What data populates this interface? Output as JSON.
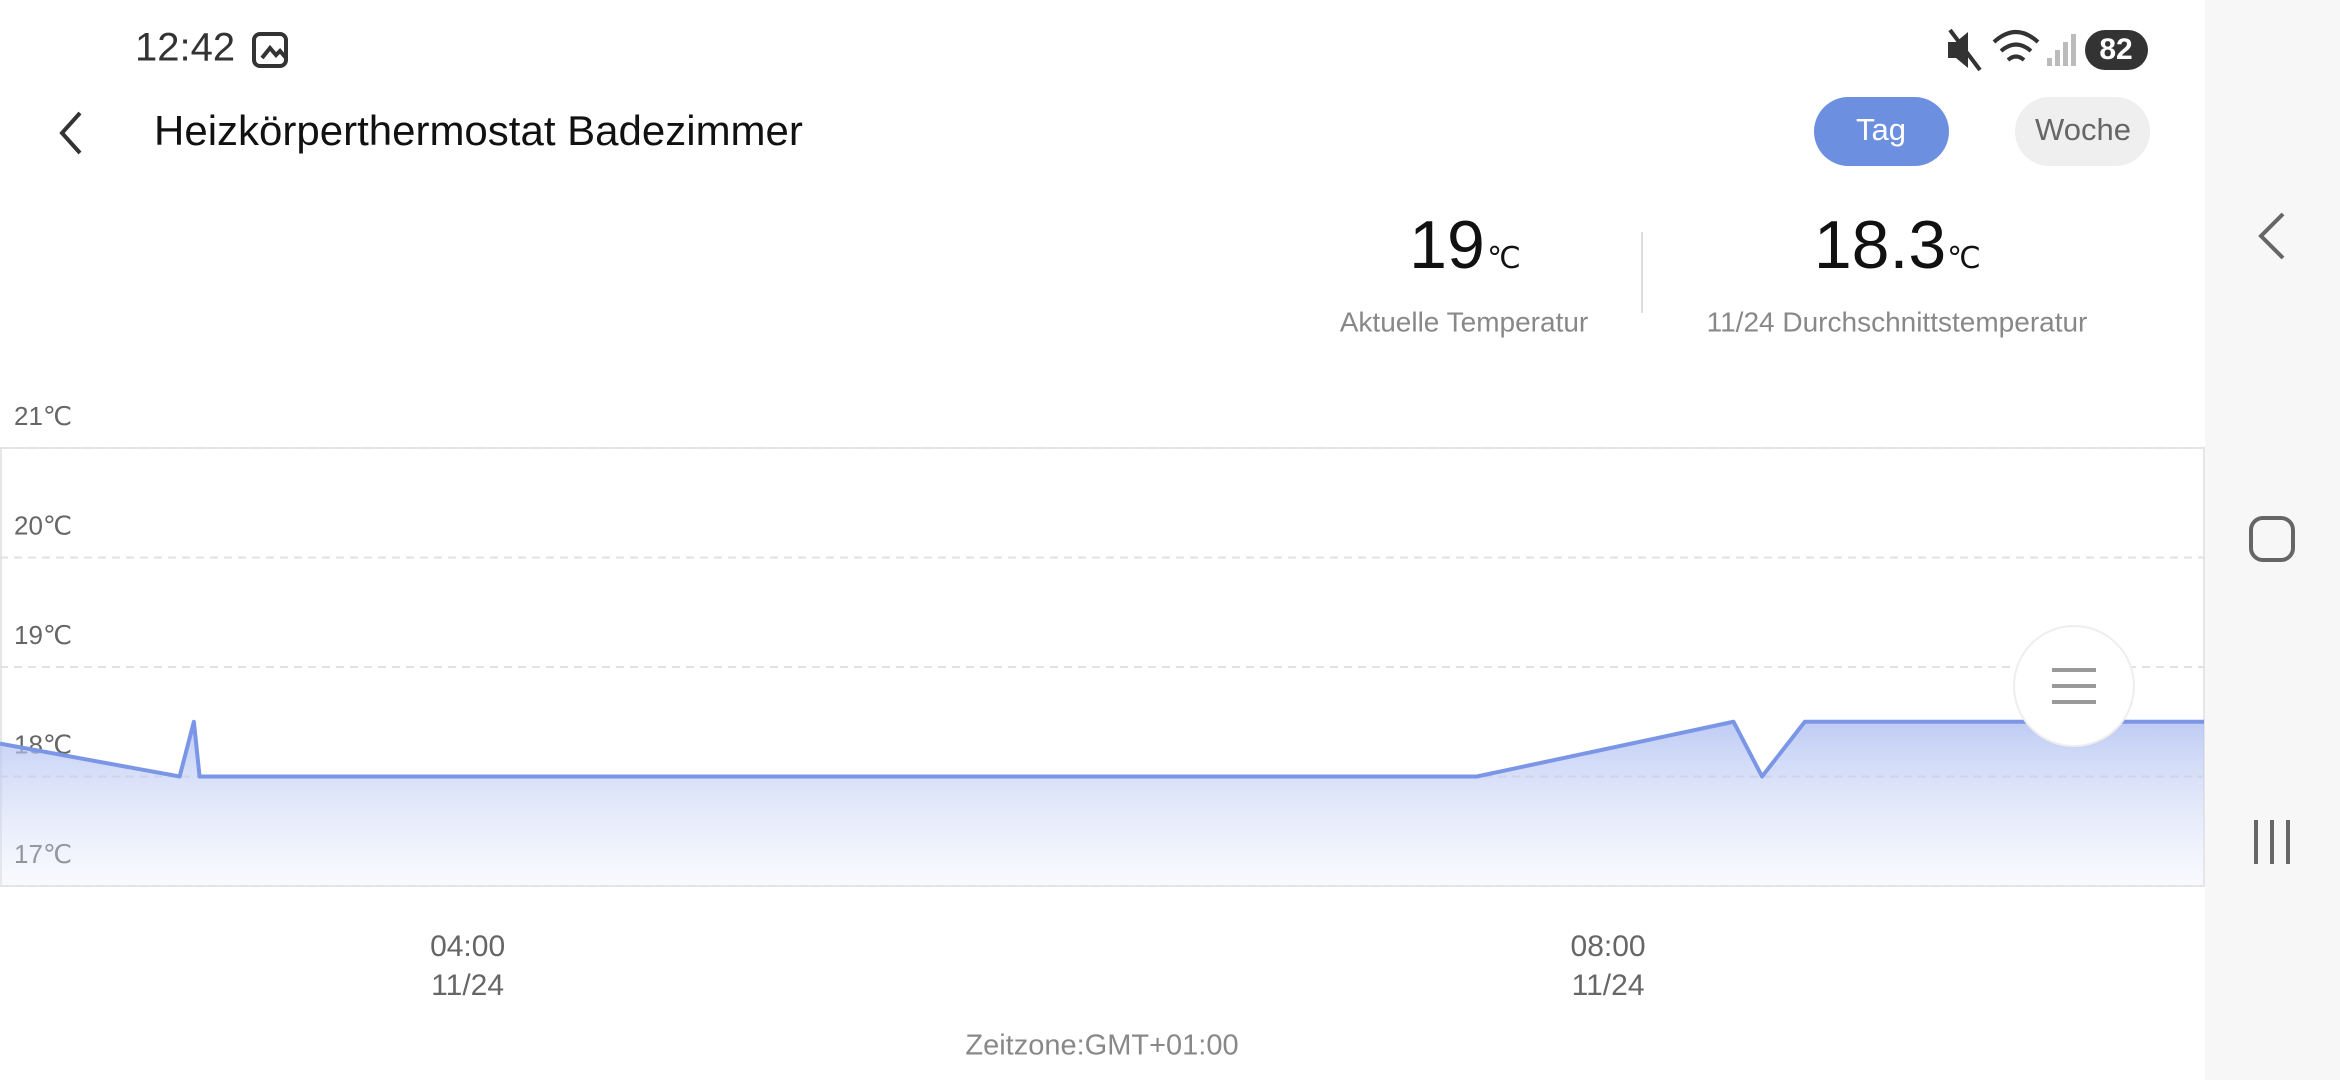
{
  "status_bar": {
    "time": "12:42",
    "battery": "82"
  },
  "header": {
    "title": "Heizkörperthermostat Badezimmer",
    "tabs": [
      "Tag",
      "Woche"
    ]
  },
  "stats": [
    {
      "value": 19,
      "unit": "℃",
      "label": "Aktuelle Temperatur"
    },
    {
      "value": 18.3,
      "unit": "℃",
      "label": "11/24 Durchschnittstemperatur"
    }
  ],
  "chart_data": {
    "type": "area",
    "x": [
      2.36,
      2.99,
      3.04,
      3.06,
      7.54,
      8.44,
      8.54,
      8.69,
      10.09
    ],
    "values": [
      18.3,
      18,
      18.5,
      18,
      18,
      18.5,
      18,
      18.5,
      18.5
    ],
    "color": "#7b96e6",
    "xlim": [
      2.36,
      10.09
    ],
    "xticks": [
      {
        "value": 4,
        "label": "04:00",
        "date": "11/24"
      },
      {
        "value": 8,
        "label": "08:00",
        "date": "11/24"
      }
    ],
    "ylim": [
      17,
      21
    ],
    "yticks": [
      {
        "value": 17,
        "label": "17℃"
      },
      {
        "value": 18,
        "label": "18℃"
      },
      {
        "value": 19,
        "label": "19℃"
      },
      {
        "value": 20,
        "label": "20℃"
      },
      {
        "value": 21,
        "label": "21℃"
      }
    ],
    "grid": true
  },
  "footer": {
    "timezone": "Zeitzone:GMT+01:00"
  }
}
